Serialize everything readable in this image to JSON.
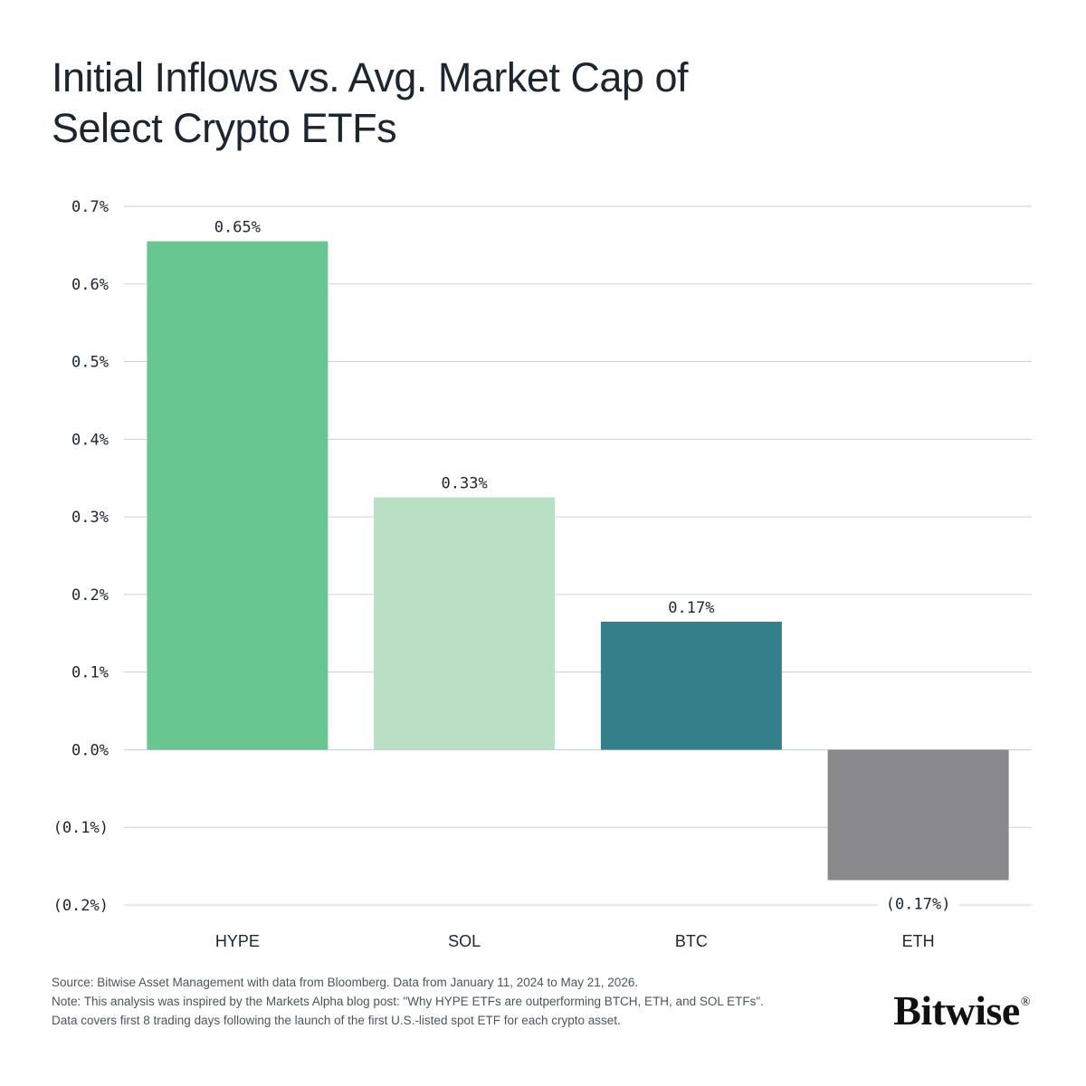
{
  "title_lines": [
    "Initial Inflows vs. Avg. Market Cap of",
    "Select Crypto ETFs"
  ],
  "chart_data": {
    "type": "bar",
    "categories": [
      "HYPE",
      "SOL",
      "BTC",
      "ETH"
    ],
    "values": [
      0.65,
      0.33,
      0.17,
      -0.17
    ],
    "bar_values_precise": [
      0.655,
      0.325,
      0.165,
      -0.168
    ],
    "data_labels": [
      "0.65%",
      "0.33%",
      "0.17%",
      "(0.17%)"
    ],
    "colors": [
      "#6ac690",
      "#b9e0c5",
      "#33808b",
      "#88888d"
    ],
    "ylim": [
      -0.2,
      0.7
    ],
    "yticks": [
      0.7,
      0.6,
      0.5,
      0.4,
      0.3,
      0.2,
      0.1,
      0.0,
      -0.1,
      -0.2
    ],
    "ytick_labels": [
      "0.7%",
      "0.6%",
      "0.5%",
      "0.4%",
      "0.3%",
      "0.2%",
      "0.1%",
      "0.0%",
      "(0.1%)",
      "(0.2%)"
    ],
    "grid": true,
    "legend": "none",
    "xlabel": "",
    "ylabel": ""
  },
  "footnotes": [
    "Source: Bitwise Asset Management with data from Bloomberg. Data from January 11, 2024 to May 21, 2026.",
    "Note: This analysis was inspired by the Markets Alpha blog post: \"Why HYPE ETFs are outperforming BTCH, ETH, and SOL ETFs\".",
    "Data covers first 8 trading days following the launch of the first U.S.-listed spot ETF for each crypto asset."
  ],
  "logo": {
    "text": "Bitwise",
    "mark": "®"
  },
  "colors": {
    "text": "#1b2631",
    "grid": "#c8d1d6",
    "background": "#ffffff"
  }
}
